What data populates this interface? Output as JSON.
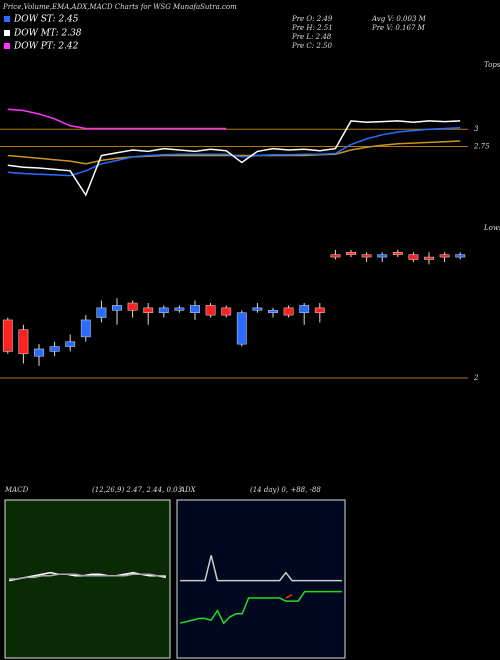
{
  "header": {
    "title": "Price,Volume,EMA,ADX,MACD Charts for WSG MunafaSutra.com"
  },
  "legend": {
    "items": [
      {
        "label": "DOW ST: 2.45",
        "color": "#2a6cff"
      },
      {
        "label": "DOW MT: 2.38",
        "color": "#ffffff"
      },
      {
        "label": "DOW PT: 2.42",
        "color": "#ff33ff"
      }
    ]
  },
  "quote": {
    "left": [
      "Pre  O: 2.49",
      "Pre  H: 2.51",
      "Pre  L: 2.48",
      "Pre  C: 2.50"
    ],
    "right": [
      "Avg V: 0.003 M",
      "Pre  V: 0.167 M"
    ]
  },
  "chart_data": [
    {
      "type": "line",
      "annotations": [
        "Tops",
        "Lows"
      ],
      "ylim": [
        1.4,
        4.0
      ],
      "yticks": [
        2.75,
        3
      ],
      "grid": true,
      "series": [
        {
          "color": "#ff33ff",
          "values": [
            3.29,
            3.27,
            3.22,
            3.15,
            3.05,
            3.01,
            3.01,
            3.01,
            3.01,
            3.01,
            3.01,
            3.01,
            3.01,
            3.01,
            3.01,
            null,
            null,
            null,
            null,
            null,
            null,
            null,
            null,
            null,
            null,
            null,
            null,
            null,
            null,
            null
          ]
        },
        {
          "color": "#c8961e",
          "values": [
            2.62,
            2.6,
            2.58,
            2.56,
            2.54,
            2.5,
            2.55,
            2.58,
            2.6,
            2.61,
            2.62,
            2.62,
            2.62,
            2.62,
            2.62,
            2.62,
            2.62,
            2.62,
            2.62,
            2.62,
            2.63,
            2.64,
            2.7,
            2.74,
            2.77,
            2.79,
            2.8,
            2.81,
            2.82,
            2.83
          ]
        },
        {
          "color": "#2a6cff",
          "values": [
            2.38,
            2.36,
            2.35,
            2.34,
            2.33,
            2.4,
            2.5,
            2.55,
            2.6,
            2.62,
            2.63,
            2.64,
            2.64,
            2.64,
            2.64,
            2.6,
            2.62,
            2.63,
            2.63,
            2.64,
            2.64,
            2.65,
            2.78,
            2.86,
            2.92,
            2.96,
            2.98,
            3.0,
            3.01,
            3.02
          ]
        },
        {
          "color": "#ffffff",
          "values": [
            2.48,
            2.45,
            2.44,
            2.42,
            2.4,
            2.05,
            2.62,
            2.66,
            2.7,
            2.68,
            2.72,
            2.7,
            2.68,
            2.71,
            2.69,
            2.52,
            2.68,
            2.72,
            2.7,
            2.71,
            2.69,
            2.72,
            3.12,
            3.1,
            3.11,
            3.12,
            3.1,
            3.12,
            3.11,
            3.12
          ]
        }
      ]
    },
    {
      "type": "candlestick",
      "ylim": [
        2.0,
        2.55
      ],
      "yticks": [
        2
      ],
      "grid": true,
      "up_color": "#2a6cff",
      "down_color": "#ff2222",
      "open": [
        2.24,
        2.2,
        2.09,
        2.11,
        2.13,
        2.17,
        2.25,
        2.28,
        2.31,
        2.29,
        2.27,
        2.28,
        2.27,
        2.3,
        2.29,
        2.14,
        2.28,
        2.27,
        2.29,
        2.27,
        2.29,
        2.51,
        2.52,
        2.51,
        2.5,
        2.52,
        2.51,
        2.5,
        2.51,
        2.5
      ],
      "high": [
        2.25,
        2.22,
        2.14,
        2.15,
        2.18,
        2.26,
        2.32,
        2.33,
        2.32,
        2.31,
        2.3,
        2.3,
        2.32,
        2.31,
        2.3,
        2.28,
        2.31,
        2.29,
        2.3,
        2.31,
        2.31,
        2.53,
        2.53,
        2.52,
        2.52,
        2.53,
        2.52,
        2.52,
        2.52,
        2.52
      ],
      "low": [
        2.1,
        2.06,
        2.05,
        2.09,
        2.11,
        2.15,
        2.23,
        2.22,
        2.25,
        2.22,
        2.25,
        2.27,
        2.24,
        2.25,
        2.25,
        2.13,
        2.27,
        2.25,
        2.25,
        2.22,
        2.23,
        2.49,
        2.5,
        2.48,
        2.48,
        2.5,
        2.48,
        2.47,
        2.48,
        2.49
      ],
      "close": [
        2.11,
        2.1,
        2.12,
        2.13,
        2.15,
        2.24,
        2.29,
        2.3,
        2.28,
        2.27,
        2.29,
        2.29,
        2.3,
        2.26,
        2.26,
        2.27,
        2.29,
        2.28,
        2.26,
        2.3,
        2.27,
        2.5,
        2.51,
        2.5,
        2.51,
        2.51,
        2.49,
        2.49,
        2.5,
        2.51
      ]
    },
    {
      "type": "line",
      "title": "MACD",
      "subtitle": "(12,26,9) 2.47, 2.44, 0.03",
      "background": "#0a2a06",
      "ylim": [
        -0.5,
        0.5
      ],
      "series": [
        {
          "color": "#ffffff",
          "values": [
            -0.01,
            0,
            0.01,
            0.02,
            0.03,
            0.04,
            0.03,
            0.03,
            0.02,
            0.02,
            0.03,
            0.03,
            0.02,
            0.02,
            0.03,
            0.04,
            0.03,
            0.02,
            0.02,
            0.01
          ]
        },
        {
          "color": "#aaaaaa",
          "values": [
            0,
            0,
            0.01,
            0.01,
            0.02,
            0.02,
            0.03,
            0.03,
            0.03,
            0.02,
            0.02,
            0.02,
            0.02,
            0.02,
            0.02,
            0.03,
            0.03,
            0.03,
            0.02,
            0.02
          ]
        }
      ]
    },
    {
      "type": "line",
      "title": "ADX",
      "subtitle": "(14 day) 0, +88, -88",
      "background": "#000820",
      "ylim": [
        0,
        100
      ],
      "series": [
        {
          "color": "#cccccc",
          "values": [
            49,
            49,
            49,
            49,
            49,
            65,
            49,
            49,
            49,
            49,
            49,
            49,
            49,
            49,
            49,
            49,
            49,
            54,
            49,
            49,
            49,
            49,
            49,
            49,
            49,
            49,
            49
          ]
        },
        {
          "color": "#22dd22",
          "values": [
            22,
            23,
            24,
            25,
            25,
            24,
            30,
            22,
            26,
            28,
            28,
            38,
            38,
            38,
            38,
            38,
            38,
            36,
            36,
            36,
            42,
            42,
            42,
            42,
            42,
            42,
            42
          ]
        },
        {
          "color": "#ff3300",
          "values": [
            null,
            null,
            null,
            null,
            null,
            null,
            null,
            null,
            null,
            null,
            null,
            null,
            null,
            null,
            null,
            null,
            null,
            38,
            40,
            null,
            null,
            null,
            null,
            null,
            null,
            null,
            null
          ]
        }
      ]
    }
  ]
}
